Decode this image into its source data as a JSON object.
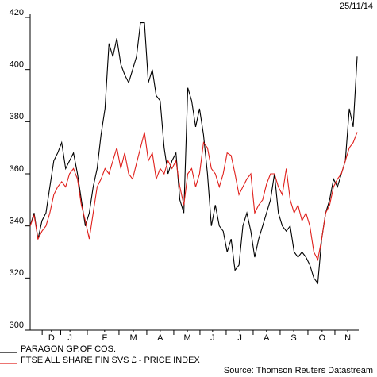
{
  "chart_data": {
    "type": "line",
    "date": "25/11/14",
    "source": "Source: Thomson Reuters Datastream",
    "xlim": [
      0,
      83
    ],
    "xticks": [
      {
        "value": 5.4,
        "label": "D"
      },
      {
        "value": 10.1,
        "label": "J"
      },
      {
        "value": 18.9,
        "label": "F"
      },
      {
        "value": 26.2,
        "label": "M"
      },
      {
        "value": 33.0,
        "label": "A"
      },
      {
        "value": 39.9,
        "label": "M"
      },
      {
        "value": 46.3,
        "label": "J"
      },
      {
        "value": 53.2,
        "label": "J"
      },
      {
        "value": 60.0,
        "label": "A"
      },
      {
        "value": 66.9,
        "label": "S"
      },
      {
        "value": 74.1,
        "label": "O"
      },
      {
        "value": 80.6,
        "label": "N"
      }
    ],
    "ylim": [
      300,
      420
    ],
    "yticks": [
      300,
      320,
      340,
      360,
      380,
      400,
      420
    ],
    "series": [
      {
        "name": "PARAGON GP.OF COS.",
        "color": "#000000",
        "values": [
          340,
          345,
          335,
          342,
          345,
          355,
          365,
          368,
          372,
          362,
          365,
          368,
          360,
          350,
          340,
          345,
          355,
          362,
          375,
          385,
          410,
          405,
          412,
          402,
          398,
          395,
          400,
          405,
          418,
          418,
          395,
          400,
          390,
          388,
          370,
          360,
          365,
          368,
          350,
          345,
          393,
          388,
          378,
          385,
          375,
          360,
          340,
          348,
          340,
          338,
          330,
          335,
          323,
          325,
          340,
          345,
          338,
          328,
          335,
          340,
          345,
          350,
          360,
          345,
          340,
          338,
          340,
          330,
          328,
          330,
          328,
          325,
          320,
          318,
          335,
          345,
          350,
          358,
          355,
          360,
          365,
          385,
          378,
          405
        ]
      },
      {
        "name": "FTSE ALL SHARE FIN SVS £ - PRICE INDEX",
        "color": "#e0201c",
        "values": [
          340,
          344,
          335,
          338,
          340,
          345,
          352,
          355,
          357,
          355,
          360,
          362,
          358,
          348,
          342,
          335,
          345,
          355,
          358,
          362,
          360,
          365,
          370,
          362,
          368,
          360,
          358,
          364,
          370,
          376,
          365,
          368,
          358,
          362,
          360,
          365,
          362,
          365,
          355,
          348,
          360,
          362,
          355,
          360,
          372,
          370,
          362,
          360,
          355,
          360,
          368,
          367,
          360,
          352,
          355,
          358,
          360,
          345,
          348,
          350,
          356,
          360,
          360,
          355,
          352,
          362,
          350,
          345,
          348,
          342,
          345,
          340,
          330,
          327,
          335,
          345,
          348,
          355,
          358,
          360,
          365,
          370,
          372,
          376
        ]
      }
    ]
  }
}
